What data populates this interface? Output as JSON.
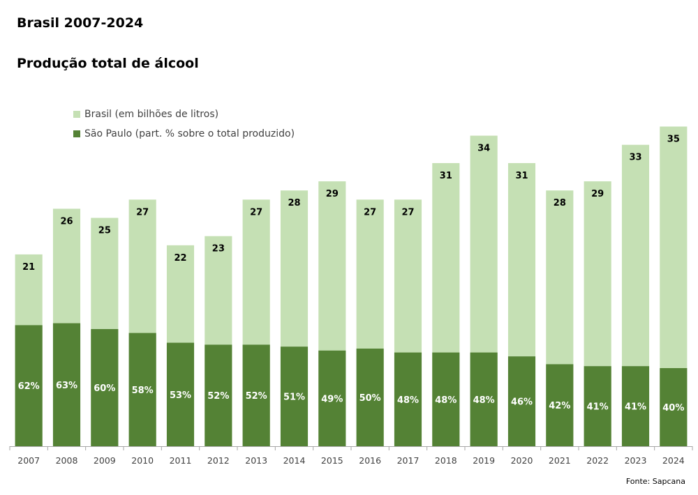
{
  "title": "Brasil 2007-2024",
  "subtitle": "Produção total de álcool",
  "source": "Fonte: Sapcana",
  "chart_data": {
    "type": "bar",
    "categories": [
      "2007",
      "2008",
      "2009",
      "2010",
      "2011",
      "2012",
      "2013",
      "2014",
      "2015",
      "2016",
      "2017",
      "2018",
      "2019",
      "2020",
      "2021",
      "2022",
      "2023",
      "2024"
    ],
    "series": [
      {
        "name": "Brasil (em bilhões de litros)",
        "color": "#c5e0b4",
        "values": [
          21,
          26,
          25,
          27,
          22,
          23,
          27,
          28,
          29,
          27,
          27,
          31,
          34,
          31,
          28,
          29,
          33,
          35
        ]
      },
      {
        "name": "São Paulo (part. % sobre o total produzido)",
        "color": "#548235",
        "values": [
          62,
          63,
          60,
          58,
          53,
          52,
          52,
          51,
          49,
          50,
          48,
          48,
          48,
          46,
          42,
          41,
          41,
          40
        ],
        "labels": [
          "62%",
          "63%",
          "60%",
          "58%",
          "53%",
          "52%",
          "52%",
          "51%",
          "49%",
          "50%",
          "48%",
          "48%",
          "48%",
          "46%",
          "42%",
          "41%",
          "41%",
          "40%"
        ]
      }
    ],
    "legend": "top-left",
    "grid": false
  }
}
